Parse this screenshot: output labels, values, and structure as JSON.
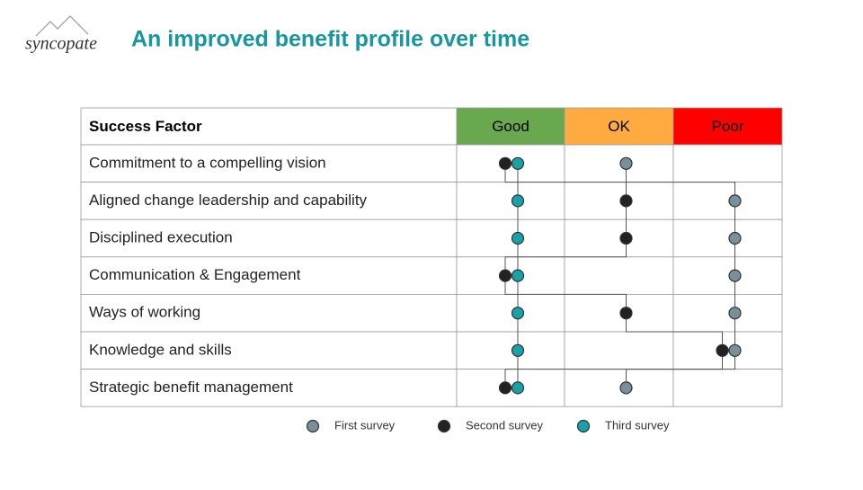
{
  "logo": "syncopate",
  "title": "An improved benefit profile over time",
  "table": {
    "header": [
      "Success Factor",
      "Good",
      "OK",
      "Poor"
    ],
    "header_colors": [
      null,
      "#6aa84f",
      "#ffab40",
      "#ff0000"
    ],
    "rows": [
      "Commitment to a compelling vision",
      "Aligned change leadership and capability",
      "Disciplined execution",
      "Communication & Engagement",
      "Ways of working",
      "Knowledge and skills",
      "Strategic benefit management"
    ]
  },
  "surveys": [
    {
      "name": "Third survey",
      "color": "#17a2a8",
      "ratings": [
        1,
        1,
        1,
        1,
        1,
        1,
        1
      ]
    },
    {
      "name": "First survey",
      "color": "#78909c",
      "ratings": [
        2,
        3,
        3,
        3,
        3,
        3,
        2
      ]
    },
    {
      "name": "Second survey",
      "color": "#222222",
      "ratings": [
        1,
        2,
        2,
        1,
        2,
        3,
        1
      ]
    }
  ],
  "legend_order": [
    1,
    2,
    0
  ]
}
